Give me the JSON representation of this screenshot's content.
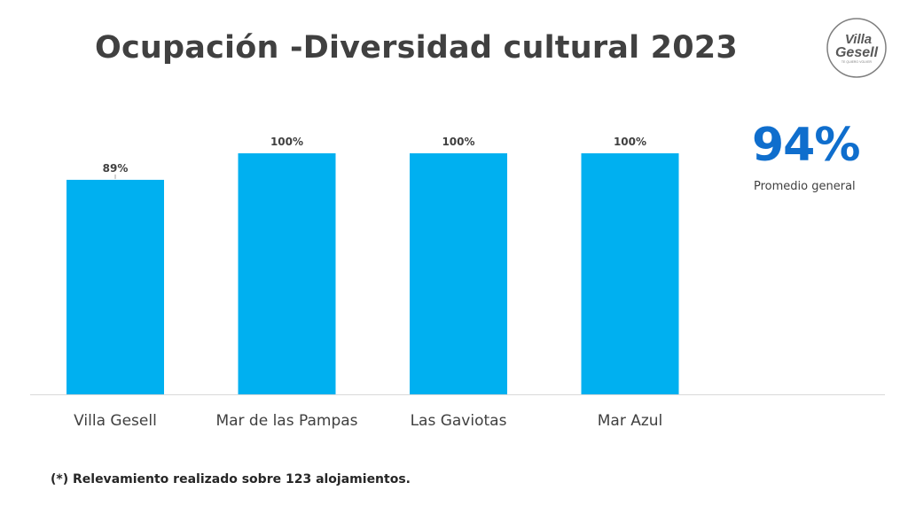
{
  "title": "Ocupación -Diversidad cultural 2023",
  "logo": {
    "icon": "villa-gesell-logo",
    "line1": "Villa",
    "line2": "Gesell",
    "tagline": "TE QUIERO VOLVER"
  },
  "kpi": {
    "value": "94%",
    "label": "Promedio general",
    "color": "#0f6ecd"
  },
  "footnote": "(*) Relevamiento realizado sobre 123 alojamientos.",
  "chart_data": {
    "type": "bar",
    "categories": [
      "Villa Gesell",
      "Mar de las Pampas",
      "Las Gaviotas",
      "Mar Azul"
    ],
    "values": [
      89,
      100,
      100,
      100
    ],
    "data_labels": [
      "89%",
      "100%",
      "100%",
      "100%"
    ],
    "ylim": [
      0,
      100
    ],
    "grid": false,
    "bar_color": "#00b0f0",
    "axis_color": "#d9d9d9"
  }
}
